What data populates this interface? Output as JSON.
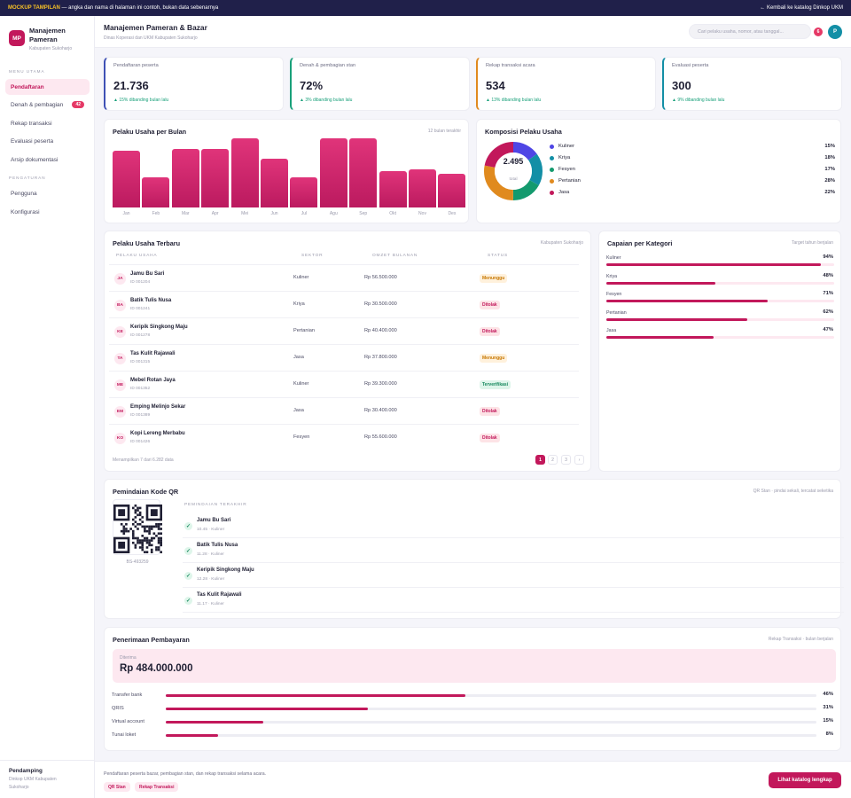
{
  "banner": {
    "tag": "MOCKUP TAMPILAN",
    "text": "— angka dan nama di halaman ini contoh, bukan data sebenarnya",
    "back_link": "← Kembali ke katalog Dinkop UKM"
  },
  "brand": {
    "logo": "MP",
    "title_line1": "Manajemen",
    "title_line2": "Pameran",
    "subtitle": "Kabupaten Sukoharjo"
  },
  "sidebar": {
    "group_main": "MENU UTAMA",
    "items": [
      {
        "label": "Pendaftaran",
        "active": true
      },
      {
        "label": "Denah & pembagian",
        "badge": "42"
      },
      {
        "label": "Rekap transaksi"
      },
      {
        "label": "Evaluasi peserta"
      },
      {
        "label": "Arsip dokumentasi"
      }
    ],
    "group_settings": "PENGATURAN",
    "settings": [
      {
        "label": "Pengguna"
      },
      {
        "label": "Konfigurasi"
      }
    ],
    "footer_title": "Pendamping",
    "footer_sub1": "Dinkop UKM Kabupaten",
    "footer_sub2": "Sukoharjo"
  },
  "header": {
    "title": "Manajemen Pameran & Bazar",
    "subtitle": "Dinas Koperasi dan UKM Kabupaten Sukoharjo",
    "search_placeholder": "Cari pelaku usaha, nomor, atau tanggal...",
    "notif_count": "6",
    "avatar": "P"
  },
  "kpis": [
    {
      "label": "Pendaftaran peserta",
      "value": "21.736",
      "delta": "▲ 15% dibanding bulan lalu",
      "color": "#3f51b5"
    },
    {
      "label": "Denah & pembagian stan",
      "value": "72%",
      "delta": "▲ 3% dibanding bulan lalu",
      "color": "#19a07a"
    },
    {
      "label": "Rekap transaksi acara",
      "value": "534",
      "delta": "▲ 13% dibanding bulan lalu",
      "color": "#e08a1e"
    },
    {
      "label": "Evaluasi peserta",
      "value": "300",
      "delta": "▲ 9% dibanding bulan lalu",
      "color": "#138fa6"
    }
  ],
  "monthly": {
    "title": "Pelaku Usaha per Bulan",
    "note": "12 bulan terakhir"
  },
  "composition": {
    "title": "Komposisi Pelaku Usaha",
    "total": "2.495",
    "total_label": "total"
  },
  "chart_data": [
    {
      "type": "bar",
      "title": "Pelaku Usaha per Bulan",
      "categories": [
        "Jan",
        "Feb",
        "Mar",
        "Apr",
        "Mei",
        "Jun",
        "Jul",
        "Agu",
        "Sep",
        "Okt",
        "Nov",
        "Des"
      ],
      "values": [
        80,
        42,
        82,
        82,
        98,
        69,
        42,
        98,
        98,
        51,
        54,
        47
      ],
      "ylim": [
        0,
        100
      ],
      "grid": false,
      "color": "#c2185b"
    },
    {
      "type": "pie",
      "title": "Komposisi Pelaku Usaha",
      "categories": [
        "Kuliner",
        "Kriya",
        "Fesyen",
        "Pertanian",
        "Jasa"
      ],
      "values": [
        15,
        18,
        17,
        28,
        22
      ],
      "labels": [
        "15%",
        "18%",
        "17%",
        "28%",
        "22%"
      ],
      "colors": [
        "#4f46e5",
        "#138fa6",
        "#149a6e",
        "#e08a1e",
        "#c2185b"
      ],
      "legend": "right"
    }
  ],
  "table": {
    "title": "Pelaku Usaha Terbaru",
    "note": "Kabupaten Sukoharjo",
    "headers": [
      "PELAKU USAHA",
      "SEKTOR",
      "OMZET BULANAN",
      "STATUS"
    ],
    "rows": [
      {
        "initials": "JA",
        "name": "Jamu Bu Sari",
        "id": "ID 001204",
        "sector": "Kuliner",
        "omzet": "Rp 56.500.000",
        "status": "Menunggu",
        "kind": "menunggu"
      },
      {
        "initials": "BA",
        "name": "Batik Tulis Nusa",
        "id": "ID 001241",
        "sector": "Kriya",
        "omzet": "Rp 30.500.000",
        "status": "Ditolak",
        "kind": "ditolak"
      },
      {
        "initials": "KE",
        "name": "Keripik Singkong Maju",
        "id": "ID 001278",
        "sector": "Pertanian",
        "omzet": "Rp 40.400.000",
        "status": "Ditolak",
        "kind": "ditolak"
      },
      {
        "initials": "TA",
        "name": "Tas Kulit Rajawali",
        "id": "ID 001315",
        "sector": "Jasa",
        "omzet": "Rp 37.800.000",
        "status": "Menunggu",
        "kind": "menunggu"
      },
      {
        "initials": "ME",
        "name": "Mebel Rotan Jaya",
        "id": "ID 001352",
        "sector": "Kuliner",
        "omzet": "Rp 39.300.000",
        "status": "Terverifikasi",
        "kind": "terverifikasi"
      },
      {
        "initials": "EM",
        "name": "Emping Melinjo Sekar",
        "id": "ID 001389",
        "sector": "Jasa",
        "omzet": "Rp 30.400.000",
        "status": "Ditolak",
        "kind": "ditolak"
      },
      {
        "initials": "KO",
        "name": "Kopi Lereng Merbabu",
        "id": "ID 001426",
        "sector": "Fesyen",
        "omzet": "Rp 55.600.000",
        "status": "Ditolak",
        "kind": "ditolak"
      }
    ],
    "footer": "Menampilkan 7 dari 6.282 data",
    "pages": [
      "1",
      "2",
      "3",
      "›"
    ]
  },
  "achievement": {
    "title": "Capaian per Kategori",
    "note": "Target tahun berjalan",
    "items": [
      {
        "label": "Kuliner",
        "pct": "94%",
        "value": 94
      },
      {
        "label": "Kriya",
        "pct": "48%",
        "value": 48
      },
      {
        "label": "Fesyen",
        "pct": "71%",
        "value": 71
      },
      {
        "label": "Pertanian",
        "pct": "62%",
        "value": 62
      },
      {
        "label": "Jasa",
        "pct": "47%",
        "value": 47
      }
    ]
  },
  "qr": {
    "title": "Pemindaian Kode QR",
    "note": "QR Stan · pindai sekali, tercatat seketika",
    "code": "BS-493259",
    "recent_header": "PEMINDAIAN TERAKHIR",
    "scans": [
      {
        "name": "Jamu Bu Sari",
        "meta": "10.45 · Kuliner"
      },
      {
        "name": "Batik Tulis Nusa",
        "meta": "11.28 · Kuliner"
      },
      {
        "name": "Keripik Singkong Maju",
        "meta": "12.28 · Kuliner"
      },
      {
        "name": "Tas Kulit Rajawali",
        "meta": "11.17 · Kuliner"
      }
    ]
  },
  "payment": {
    "title": "Penerimaan Pembayaran",
    "note": "Rekap Transaksi · bulan berjalan",
    "received_label": "Diterima",
    "received_value": "Rp 484.000.000",
    "methods": [
      {
        "label": "Transfer bank",
        "pct": "46%",
        "value": 46
      },
      {
        "label": "QRIS",
        "pct": "31%",
        "value": 31
      },
      {
        "label": "Virtual account",
        "pct": "15%",
        "value": 15
      },
      {
        "label": "Tunai loket",
        "pct": "8%",
        "value": 8
      }
    ]
  },
  "footer": {
    "text": "Pendaftaran peserta bazar, pembagian stan, dan rekap transaksi selama acara.",
    "chip1": "QR Stan",
    "chip2": "Rekap Transaksi",
    "cta": "Lihat katalog lengkap"
  }
}
